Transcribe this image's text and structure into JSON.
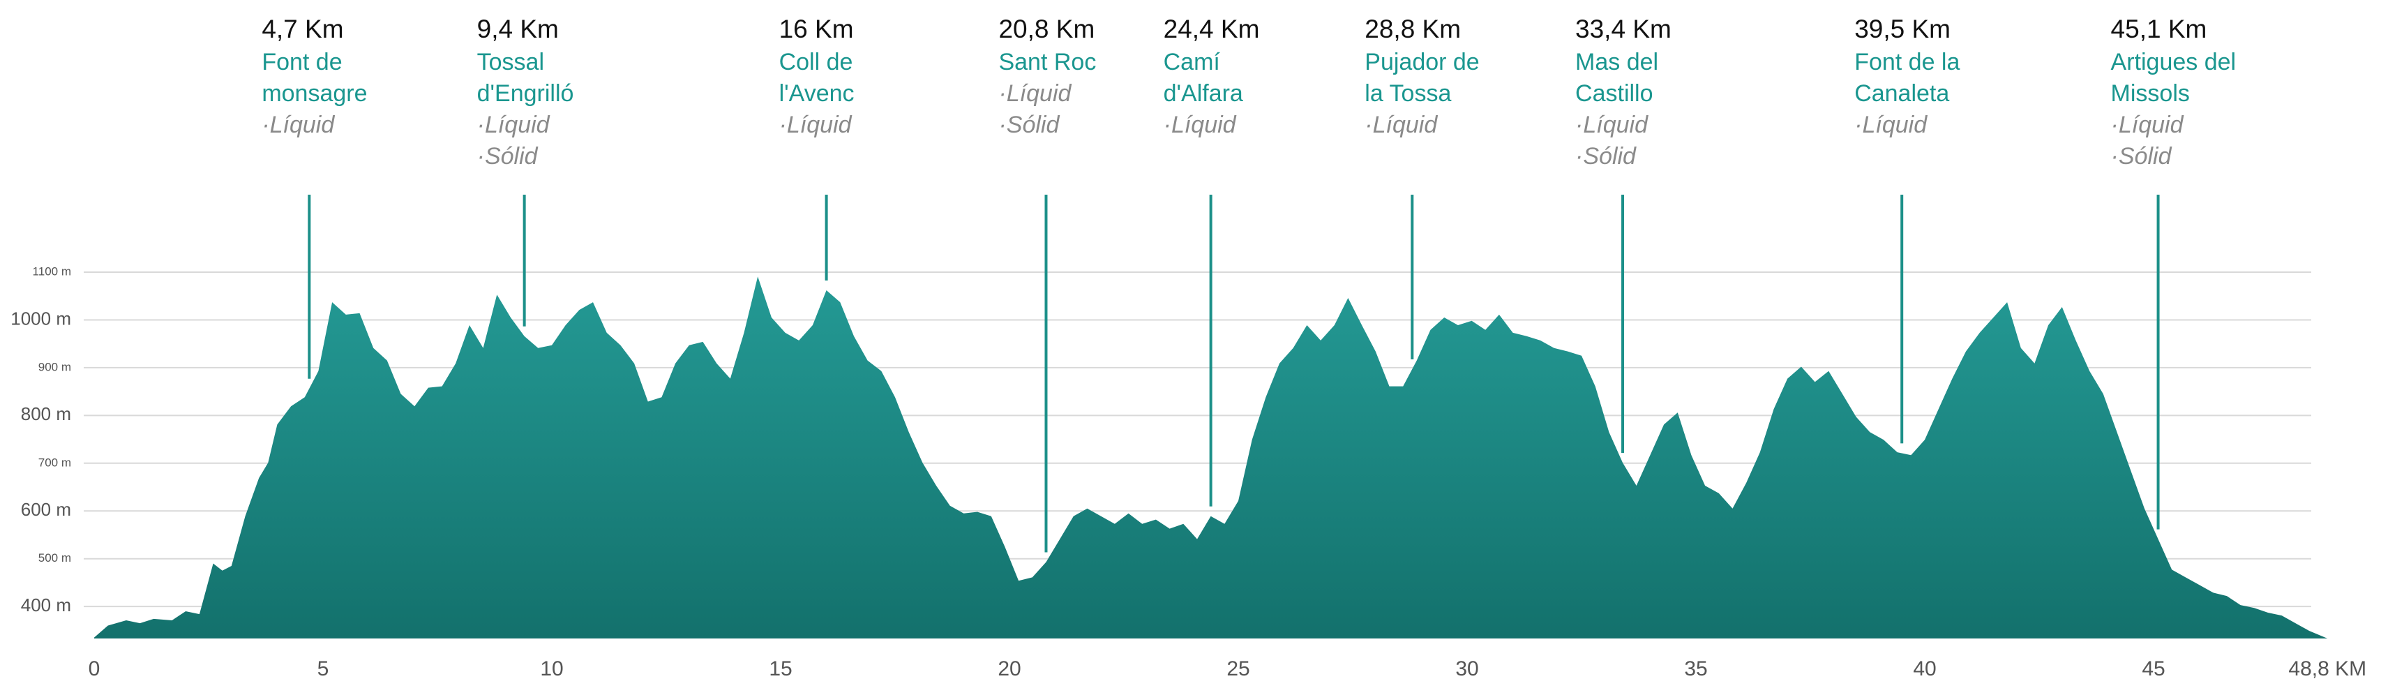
{
  "chart_data": {
    "type": "area",
    "color": "#249a95",
    "color_bottom": "#13716c",
    "grid": true,
    "x": [
      0,
      0.3,
      0.7,
      1.0,
      1.3,
      1.7,
      2.0,
      2.3,
      2.6,
      2.8,
      3.0,
      3.3,
      3.6,
      3.8,
      4.0,
      4.3,
      4.6,
      4.9,
      5.2,
      5.5,
      5.8,
      6.1,
      6.4,
      6.7,
      7.0,
      7.3,
      7.6,
      7.9,
      8.2,
      8.5,
      8.8,
      9.1,
      9.4,
      9.7,
      10.0,
      10.3,
      10.6,
      10.9,
      11.2,
      11.5,
      11.8,
      12.1,
      12.4,
      12.7,
      13.0,
      13.3,
      13.6,
      13.9,
      14.2,
      14.5,
      14.8,
      15.1,
      15.4,
      15.7,
      16.0,
      16.3,
      16.6,
      16.9,
      17.2,
      17.5,
      17.8,
      18.1,
      18.4,
      18.7,
      19.0,
      19.3,
      19.6,
      19.9,
      20.2,
      20.5,
      20.8,
      21.1,
      21.4,
      21.7,
      22.0,
      22.3,
      22.6,
      22.9,
      23.2,
      23.5,
      23.8,
      24.1,
      24.4,
      24.7,
      25.0,
      25.3,
      25.6,
      25.9,
      26.2,
      26.5,
      26.8,
      27.1,
      27.4,
      27.7,
      28.0,
      28.3,
      28.6,
      28.9,
      29.2,
      29.5,
      29.8,
      30.1,
      30.4,
      30.7,
      31.0,
      31.3,
      31.6,
      31.9,
      32.2,
      32.5,
      32.8,
      33.1,
      33.4,
      33.7,
      34.0,
      34.3,
      34.6,
      34.9,
      35.2,
      35.5,
      35.8,
      36.1,
      36.4,
      36.7,
      37.0,
      37.3,
      37.6,
      37.9,
      38.2,
      38.5,
      38.8,
      39.1,
      39.4,
      39.7,
      40.0,
      40.3,
      40.6,
      40.9,
      41.2,
      41.5,
      41.8,
      42.1,
      42.4,
      42.7,
      43.0,
      43.3,
      43.6,
      43.9,
      44.2,
      44.5,
      44.8,
      45.1,
      45.4,
      45.7,
      46.0,
      46.3,
      46.6,
      46.9,
      47.2,
      47.5,
      47.8,
      48.1,
      48.4,
      48.8
    ],
    "values": [
      335,
      360,
      371,
      365,
      374,
      371,
      390,
      384,
      490,
      475,
      485,
      589,
      669,
      701,
      781,
      819,
      838,
      893,
      1037,
      1011,
      1014,
      941,
      915,
      845,
      819,
      858,
      861,
      909,
      989,
      941,
      1053,
      1005,
      966,
      941,
      947,
      989,
      1021,
      1037,
      973,
      947,
      909,
      829,
      838,
      909,
      947,
      954,
      909,
      877,
      973,
      1091,
      1005,
      973,
      957,
      989,
      1062,
      1037,
      966,
      915,
      893,
      838,
      765,
      701,
      653,
      611,
      595,
      598,
      589,
      525,
      454,
      461,
      493,
      541,
      589,
      605,
      589,
      573,
      595,
      573,
      582,
      563,
      573,
      541,
      589,
      573,
      621,
      749,
      838,
      909,
      941,
      989,
      957,
      989,
      1046,
      989,
      934,
      861,
      861,
      915,
      979,
      1005,
      989,
      998,
      979,
      1011,
      973,
      966,
      957,
      941,
      934,
      925,
      861,
      765,
      701,
      653,
      717,
      781,
      806,
      717,
      653,
      637,
      605,
      659,
      723,
      813,
      877,
      902,
      870,
      893,
      845,
      797,
      765,
      749,
      723,
      717,
      749,
      813,
      877,
      934,
      973,
      1005,
      1037,
      941,
      909,
      989,
      1027,
      957,
      893,
      845,
      765,
      685,
      605,
      541,
      477,
      461,
      445,
      429,
      422,
      403,
      397,
      387,
      381,
      365,
      349,
      333
    ],
    "xlim": [
      0,
      48.8
    ],
    "ylim": [
      333,
      1100
    ],
    "xticks": [
      0,
      5,
      10,
      15,
      20,
      25,
      30,
      35,
      40,
      45,
      {
        "value": 48.8,
        "label": "48,8 KM"
      }
    ],
    "yticks": [
      {
        "value": 400,
        "label": "400 m"
      },
      {
        "value": 500,
        "label": "500 m"
      },
      {
        "value": 600,
        "label": "600 m"
      },
      {
        "value": 700,
        "label": "700 m"
      },
      {
        "value": 800,
        "label": "800 m"
      },
      {
        "value": 900,
        "label": "900 m"
      },
      {
        "value": 1000,
        "label": "1000 m"
      },
      {
        "value": 1100,
        "label": "1100 m"
      }
    ],
    "stations": [
      {
        "km": {
          "value": 4.7,
          "label": "4,7 Km"
        },
        "name": [
          "Font de",
          "monsagre"
        ],
        "supplies": [
          "·Líquid"
        ]
      },
      {
        "km": {
          "value": 9.4,
          "label": "9,4 Km"
        },
        "name": [
          "Tossal",
          "d'Engrilló"
        ],
        "supplies": [
          "·Líquid",
          "·Sólid"
        ]
      },
      {
        "km": {
          "value": 16,
          "label": "16 Km"
        },
        "name": [
          "Coll de",
          "l'Avenc"
        ],
        "supplies": [
          "·Líquid"
        ]
      },
      {
        "km": {
          "value": 20.8,
          "label": "20,8 Km"
        },
        "name": [
          "Sant Roc"
        ],
        "supplies": [
          "·Líquid",
          "·Sólid"
        ]
      },
      {
        "km": {
          "value": 24.4,
          "label": "24,4 Km"
        },
        "name": [
          "Camí",
          "d'Alfara"
        ],
        "supplies": [
          "·Líquid"
        ]
      },
      {
        "km": {
          "value": 28.8,
          "label": "28,8 Km"
        },
        "name": [
          "Pujador de",
          "la Tossa"
        ],
        "supplies": [
          "·Líquid"
        ]
      },
      {
        "km": {
          "value": 33.4,
          "label": "33,4 Km"
        },
        "name": [
          "Mas del",
          "Castillo"
        ],
        "supplies": [
          "·Líquid",
          "·Sólid"
        ]
      },
      {
        "km": {
          "value": 39.5,
          "label": "39,5 Km"
        },
        "name": [
          "Font de la",
          "Canaleta"
        ],
        "supplies": [
          "·Líquid"
        ]
      },
      {
        "km": {
          "value": 45.1,
          "label": "45,1 Km"
        },
        "name": [
          "Artigues del",
          "Missols"
        ],
        "supplies": [
          "·Líquid",
          "·Sólid"
        ]
      }
    ]
  }
}
